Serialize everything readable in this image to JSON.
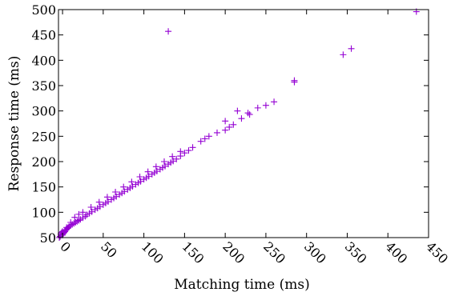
{
  "chart_data": {
    "type": "scatter",
    "title": "",
    "xlabel": "Matching time (ms)",
    "ylabel": "Response time (ms)",
    "xlim": [
      -5,
      450
    ],
    "ylim": [
      50,
      500
    ],
    "xticks": [
      0,
      50,
      100,
      150,
      200,
      250,
      300,
      350,
      400,
      450
    ],
    "yticks": [
      50,
      100,
      150,
      200,
      250,
      300,
      350,
      400,
      450,
      500
    ],
    "grid": false,
    "legend": "none",
    "marker": "plus",
    "color": "#9400d3",
    "series": [
      {
        "x": [
          -4,
          -3,
          -2,
          -2,
          -1,
          0,
          0,
          1,
          2,
          3,
          4,
          5,
          6,
          7,
          8,
          10,
          12,
          14,
          16,
          18,
          20,
          22,
          25,
          28,
          30,
          33,
          36,
          40,
          43,
          46,
          50,
          53,
          56,
          60,
          63,
          66,
          70,
          73,
          76,
          80,
          83,
          86,
          90,
          93,
          96,
          100,
          103,
          106,
          110,
          113,
          116,
          120,
          123,
          126,
          130,
          133,
          136,
          140,
          145,
          150,
          155,
          160,
          170,
          175,
          180,
          190,
          200,
          205,
          210,
          220,
          230,
          240,
          250,
          260,
          285,
          285,
          345,
          355,
          435,
          130,
          5,
          10,
          15,
          20,
          25,
          35,
          45,
          55,
          65,
          75,
          85,
          95,
          105,
          115,
          125,
          135,
          145,
          200,
          215,
          228
        ],
        "y": [
          50,
          52,
          55,
          58,
          60,
          55,
          62,
          58,
          60,
          62,
          65,
          66,
          68,
          70,
          72,
          74,
          76,
          78,
          80,
          82,
          84,
          86,
          89,
          92,
          95,
          98,
          101,
          105,
          108,
          111,
          115,
          118,
          121,
          125,
          128,
          131,
          135,
          138,
          141,
          145,
          148,
          151,
          155,
          158,
          161,
          165,
          168,
          171,
          175,
          178,
          181,
          185,
          188,
          191,
          195,
          198,
          201,
          205,
          211,
          217,
          222,
          228,
          240,
          245,
          250,
          257,
          262,
          268,
          273,
          285,
          293,
          306,
          311,
          318,
          357,
          360,
          411,
          423,
          496,
          457,
          70,
          80,
          90,
          96,
          100,
          110,
          120,
          130,
          140,
          150,
          160,
          170,
          180,
          190,
          200,
          210,
          220,
          280,
          300,
          296
        ]
      }
    ]
  }
}
